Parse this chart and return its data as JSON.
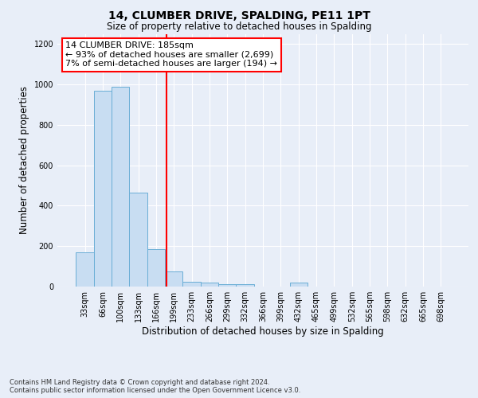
{
  "title": "14, CLUMBER DRIVE, SPALDING, PE11 1PT",
  "subtitle": "Size of property relative to detached houses in Spalding",
  "xlabel": "Distribution of detached houses by size in Spalding",
  "ylabel": "Number of detached properties",
  "bar_color": "#c8ddf2",
  "bar_edge_color": "#6aaed6",
  "categories": [
    "33sqm",
    "66sqm",
    "100sqm",
    "133sqm",
    "166sqm",
    "199sqm",
    "233sqm",
    "266sqm",
    "299sqm",
    "332sqm",
    "366sqm",
    "399sqm",
    "432sqm",
    "465sqm",
    "499sqm",
    "532sqm",
    "565sqm",
    "598sqm",
    "632sqm",
    "665sqm",
    "698sqm"
  ],
  "values": [
    170,
    968,
    990,
    465,
    185,
    73,
    25,
    18,
    13,
    10,
    0,
    0,
    20,
    0,
    0,
    0,
    0,
    0,
    0,
    0,
    0
  ],
  "annotation_box_text": "14 CLUMBER DRIVE: 185sqm\n← 93% of detached houses are smaller (2,699)\n7% of semi-detached houses are larger (194) →",
  "annotation_box_color": "white",
  "annotation_box_edge_color": "red",
  "vline_color": "red",
  "ylim": [
    0,
    1250
  ],
  "yticks": [
    0,
    200,
    400,
    600,
    800,
    1000,
    1200
  ],
  "footnote": "Contains HM Land Registry data © Crown copyright and database right 2024.\nContains public sector information licensed under the Open Government Licence v3.0.",
  "background_color": "#e8eef8",
  "plot_bg_color": "#e8eef8",
  "title_fontsize": 10,
  "subtitle_fontsize": 8.5,
  "ylabel_fontsize": 8.5,
  "xlabel_fontsize": 8.5,
  "tick_fontsize": 7,
  "footnote_fontsize": 6,
  "annot_fontsize": 8
}
